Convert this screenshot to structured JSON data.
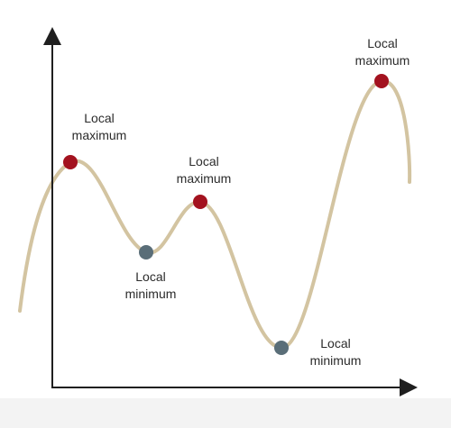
{
  "colors": {
    "curve": "#d3c4a1",
    "axis": "#1f1f1f",
    "maximum_point": "#a3121f",
    "minimum_point": "#5a6e78"
  },
  "labels": {
    "max_left": "Local\nmaximum",
    "max_middle": "Local\nmaximum",
    "max_right": "Local\nmaximum",
    "min_left": "Local\nminimum",
    "min_right": "Local\nminimum"
  }
}
